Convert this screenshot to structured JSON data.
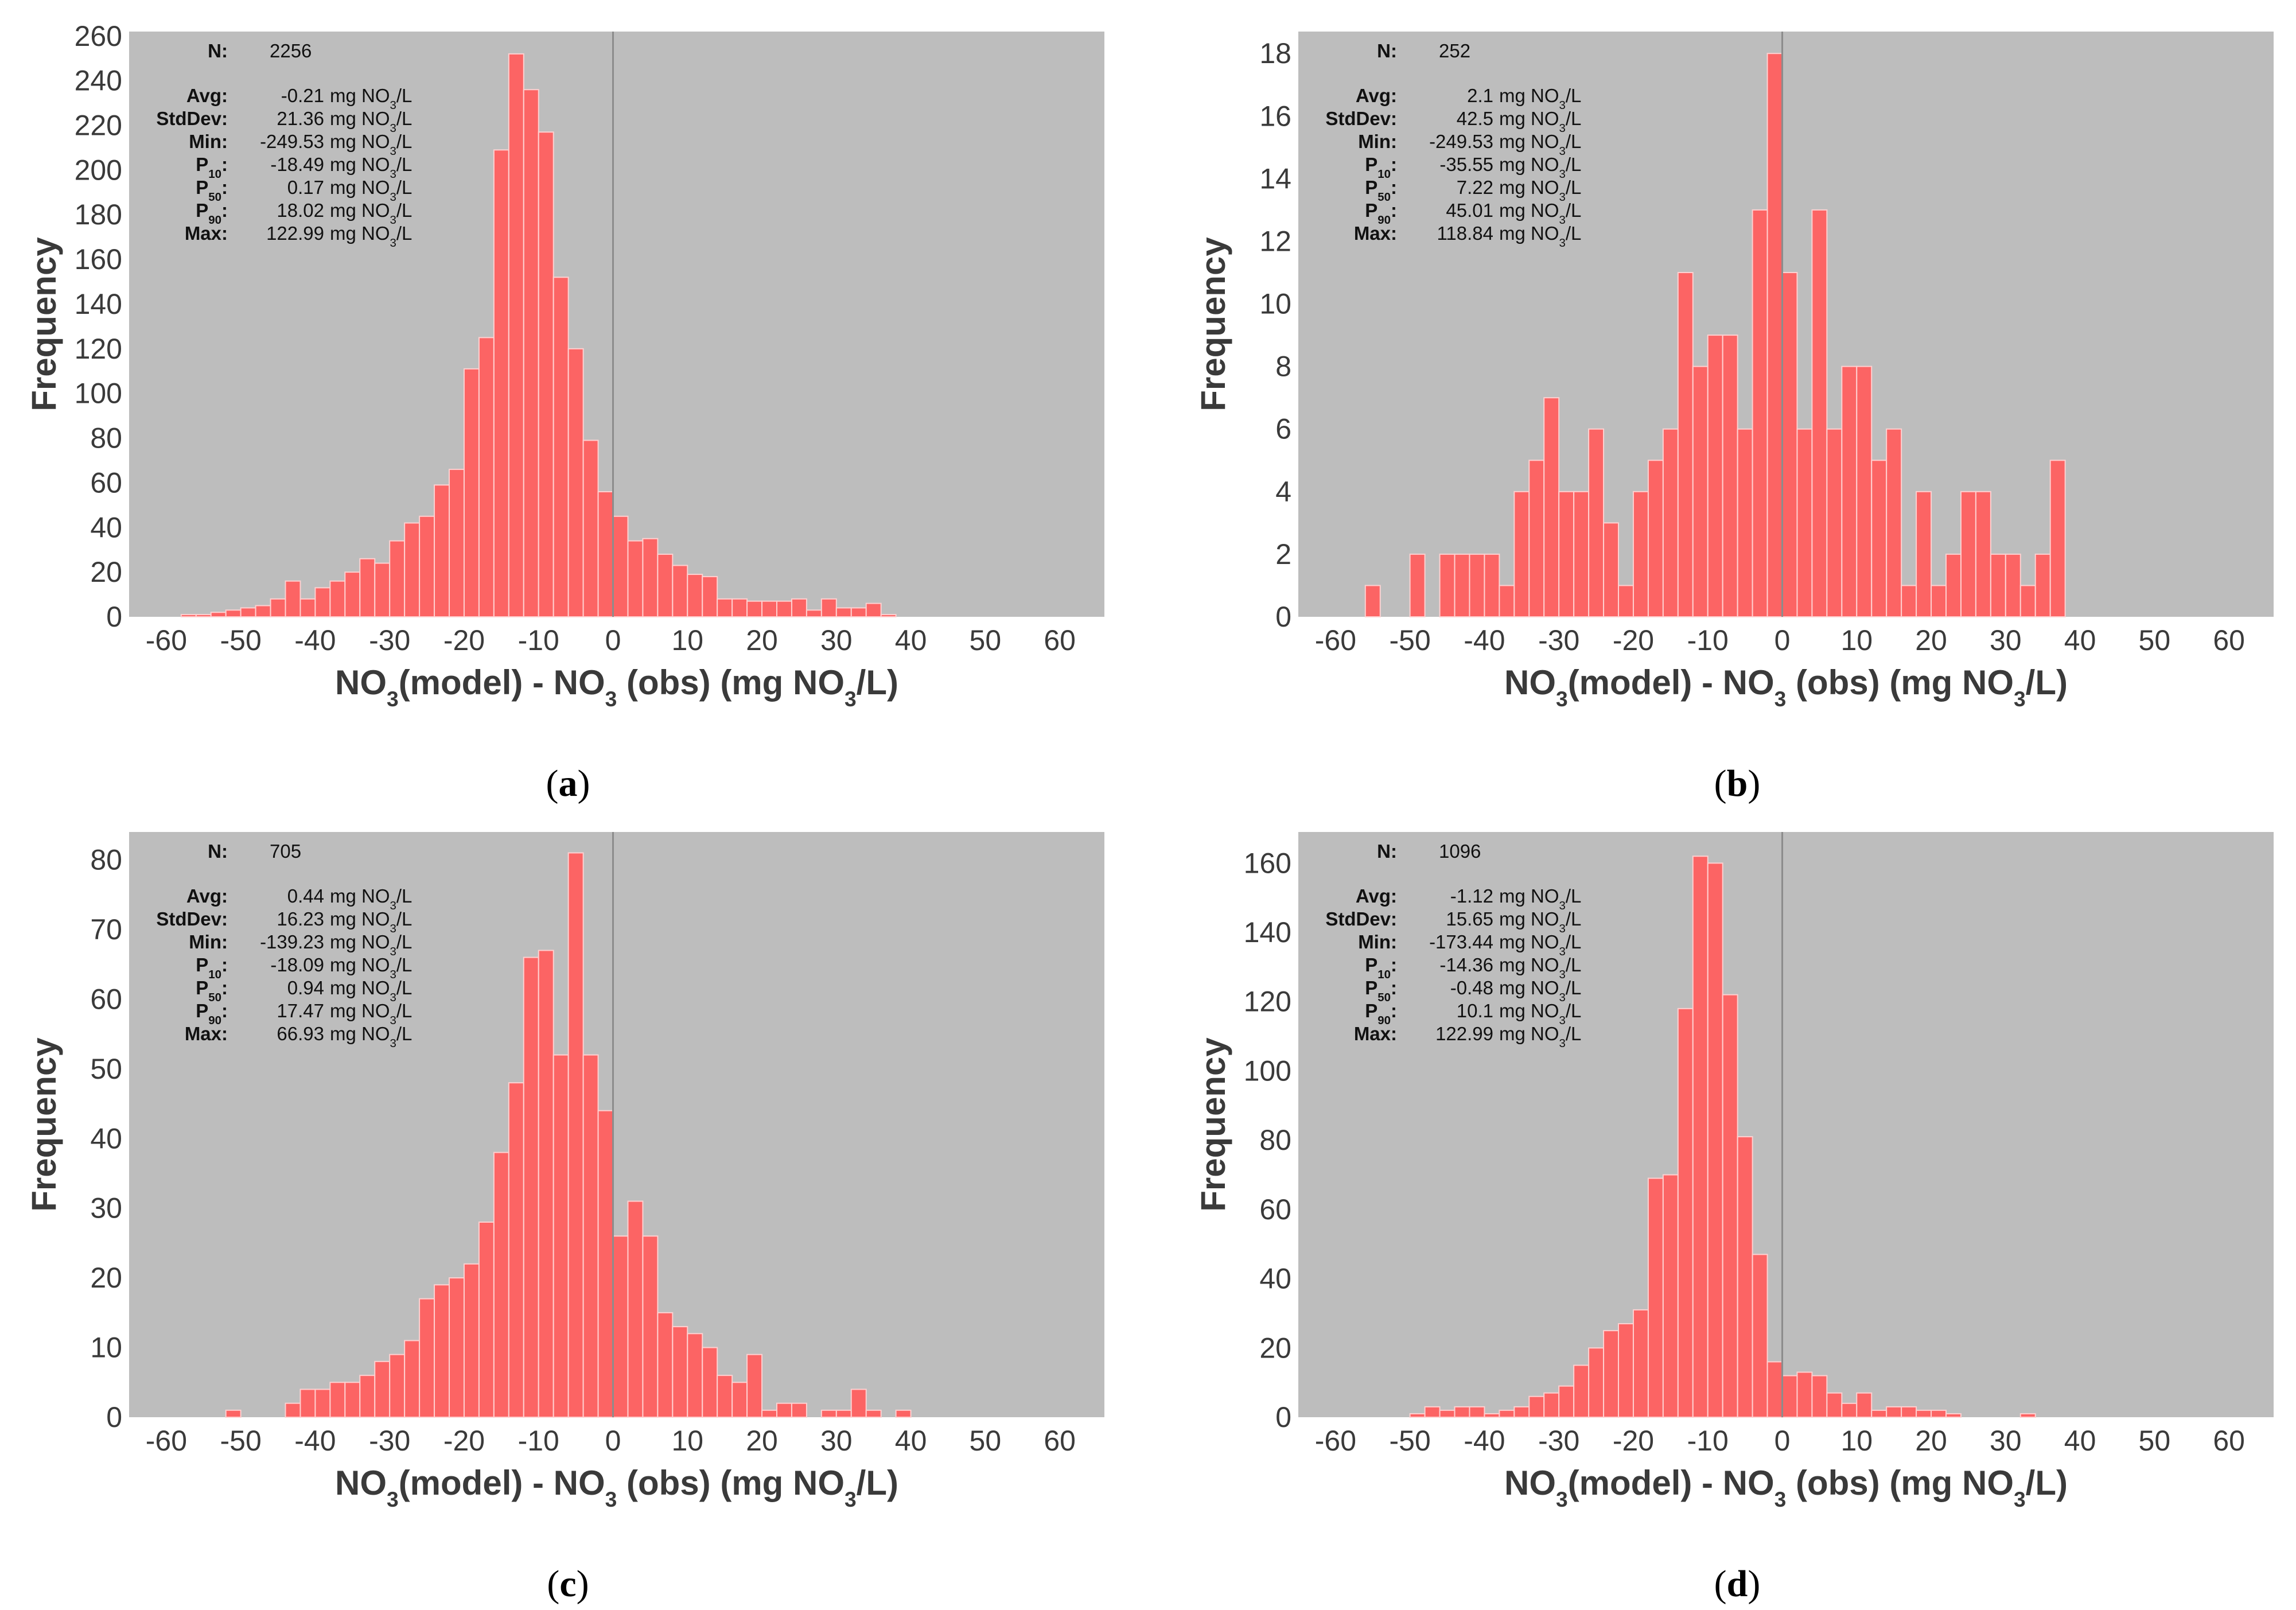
{
  "colors": {
    "plot_background": "#bdbdbd",
    "bar_fill": "#fc6464",
    "bar_edge": "#ffd0d0",
    "zero_line": "#8c8c8c",
    "text": "#3a3a3a"
  },
  "chart_data": [
    {
      "type": "bar",
      "panel_label": "a",
      "xlabel": "NO3(model) - NO3 (obs) (mg NO3/L)",
      "ylabel": "Frequency",
      "xlim": [
        -65,
        66
      ],
      "ylim": [
        0,
        262
      ],
      "xticks": [
        -60,
        -50,
        -40,
        -30,
        -20,
        -10,
        0,
        10,
        20,
        30,
        40,
        50,
        60
      ],
      "yticks": [
        0,
        20,
        40,
        60,
        80,
        100,
        120,
        140,
        160,
        180,
        200,
        220,
        240,
        260
      ],
      "zero_line": 0,
      "bin_width": 2,
      "bin_start": -58,
      "values": [
        1,
        1,
        2,
        3,
        4,
        5,
        8,
        16,
        8,
        13,
        16,
        20,
        26,
        24,
        34,
        42,
        45,
        59,
        66,
        111,
        125,
        209,
        252,
        236,
        217,
        152,
        120,
        79,
        56,
        45,
        34,
        35,
        28,
        23,
        19,
        18,
        8,
        8,
        7,
        7,
        7,
        8,
        3,
        8,
        4,
        4,
        6,
        1
      ],
      "stats": {
        "n_label": "N:",
        "n_value": "2256",
        "unit": "mg NO3/L",
        "rows": [
          {
            "key": "Avg:",
            "value": "-0.21"
          },
          {
            "key": "StdDev:",
            "value": "21.36"
          },
          {
            "key": "Min:",
            "value": "-249.53"
          },
          {
            "key": "P10:",
            "value": "-18.49"
          },
          {
            "key": "P50:",
            "value": "0.17"
          },
          {
            "key": "P90:",
            "value": "18.02"
          },
          {
            "key": "Max:",
            "value": "122.99"
          }
        ]
      }
    },
    {
      "type": "bar",
      "panel_label": "b",
      "xlabel": "NO3(model) - NO3 (obs) (mg NO3/L)",
      "ylabel": "Frequency",
      "xlim": [
        -65,
        66
      ],
      "ylim": [
        0,
        18.7
      ],
      "xticks": [
        -60,
        -50,
        -40,
        -30,
        -20,
        -10,
        0,
        10,
        20,
        30,
        40,
        50,
        60
      ],
      "yticks": [
        0,
        2,
        4,
        6,
        8,
        10,
        12,
        14,
        16,
        18
      ],
      "zero_line": 0,
      "bin_width": 2,
      "bin_start": -58,
      "values": [
        0,
        1,
        0,
        0,
        2,
        0,
        2,
        2,
        2,
        2,
        1,
        4,
        5,
        7,
        4,
        4,
        6,
        3,
        1,
        4,
        5,
        6,
        11,
        8,
        9,
        9,
        6,
        13,
        18,
        11,
        6,
        13,
        6,
        8,
        8,
        5,
        6,
        1,
        4,
        1,
        2,
        4,
        4,
        2,
        2,
        1,
        2,
        5
      ],
      "stats": {
        "n_label": "N:",
        "n_value": "252",
        "unit": "mg NO3/L",
        "rows": [
          {
            "key": "Avg:",
            "value": "2.1"
          },
          {
            "key": "StdDev:",
            "value": "42.5"
          },
          {
            "key": "Min:",
            "value": "-249.53"
          },
          {
            "key": "P10:",
            "value": "-35.55"
          },
          {
            "key": "P50:",
            "value": "7.22"
          },
          {
            "key": "P90:",
            "value": "45.01"
          },
          {
            "key": "Max:",
            "value": "118.84"
          }
        ]
      }
    },
    {
      "type": "bar",
      "panel_label": "c",
      "xlabel": "NO3(model) - NO3 (obs) (mg NO3/L)",
      "ylabel": "Frequency",
      "xlim": [
        -65,
        66
      ],
      "ylim": [
        0,
        84
      ],
      "xticks": [
        -60,
        -50,
        -40,
        -30,
        -20,
        -10,
        0,
        10,
        20,
        30,
        40,
        50,
        60
      ],
      "yticks": [
        0,
        10,
        20,
        30,
        40,
        50,
        60,
        70,
        80
      ],
      "zero_line": 0,
      "bin_width": 2,
      "bin_start": -58,
      "values": [
        0,
        0,
        0,
        1,
        0,
        0,
        0,
        2,
        4,
        4,
        5,
        5,
        6,
        8,
        9,
        11,
        17,
        19,
        20,
        22,
        28,
        38,
        48,
        66,
        67,
        52,
        81,
        52,
        44,
        26,
        31,
        26,
        15,
        13,
        12,
        10,
        6,
        5,
        9,
        1,
        2,
        2,
        0,
        1,
        1,
        4,
        1,
        0,
        1
      ],
      "stats": {
        "n_label": "N:",
        "n_value": "705",
        "unit": "mg NO3/L",
        "rows": [
          {
            "key": "Avg:",
            "value": "0.44"
          },
          {
            "key": "StdDev:",
            "value": "16.23"
          },
          {
            "key": "Min:",
            "value": "-139.23"
          },
          {
            "key": "P10:",
            "value": "-18.09"
          },
          {
            "key": "P50:",
            "value": "0.94"
          },
          {
            "key": "P90:",
            "value": "17.47"
          },
          {
            "key": "Max:",
            "value": "66.93"
          }
        ]
      }
    },
    {
      "type": "bar",
      "panel_label": "d",
      "xlabel": "NO3(model) - NO3 (obs) (mg NO3/L)",
      "ylabel": "Frequency",
      "xlim": [
        -65,
        66
      ],
      "ylim": [
        0,
        169
      ],
      "xticks": [
        -60,
        -50,
        -40,
        -30,
        -20,
        -10,
        0,
        10,
        20,
        30,
        40,
        50,
        60
      ],
      "yticks": [
        0,
        20,
        40,
        60,
        80,
        100,
        120,
        140,
        160
      ],
      "zero_line": 0,
      "bin_width": 2,
      "bin_start": -52,
      "values": [
        0,
        1,
        3,
        2,
        3,
        3,
        1,
        2,
        3,
        6,
        7,
        9,
        15,
        20,
        25,
        27,
        31,
        69,
        70,
        118,
        162,
        160,
        122,
        81,
        47,
        16,
        12,
        13,
        12,
        7,
        4,
        7,
        2,
        3,
        3,
        2,
        2,
        1,
        0,
        0,
        0,
        0,
        1
      ],
      "stats": {
        "n_label": "N:",
        "n_value": "1096",
        "unit": "mg NO3/L",
        "rows": [
          {
            "key": "Avg:",
            "value": "-1.12"
          },
          {
            "key": "StdDev:",
            "value": "15.65"
          },
          {
            "key": "Min:",
            "value": "-173.44"
          },
          {
            "key": "P10:",
            "value": "-14.36"
          },
          {
            "key": "P50:",
            "value": "-0.48"
          },
          {
            "key": "P90:",
            "value": "10.1"
          },
          {
            "key": "Max:",
            "value": "122.99"
          }
        ]
      }
    }
  ]
}
